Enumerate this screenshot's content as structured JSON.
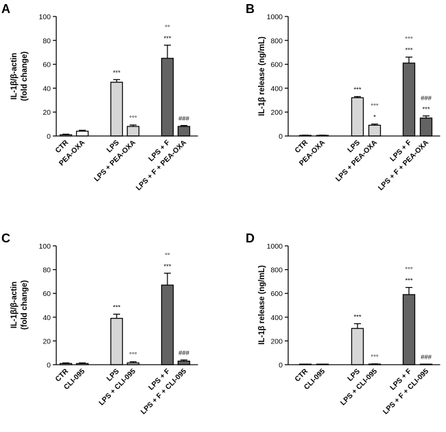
{
  "colors": {
    "white": "#ffffff",
    "light_gray": "#d6d6d6",
    "dark_gray": "#636363",
    "ink": "#000000"
  },
  "chart_data": [
    {
      "panel": "A",
      "type": "bar",
      "ylabel": [
        "IL-1β/β-actin",
        "(fold change)"
      ],
      "ylim": [
        0,
        100
      ],
      "yticks": [
        0,
        20,
        40,
        60,
        80,
        100
      ],
      "categories": [
        "CTR",
        "PEA-OXA",
        "LPS",
        "LPS + PEA-OXA",
        "LPS + F",
        "LPS + F + PEA-OXA"
      ],
      "values": [
        1,
        4,
        45,
        8,
        65,
        8
      ],
      "errors": [
        0.5,
        0.8,
        2.2,
        1.2,
        11,
        0.8
      ],
      "fill": [
        "white",
        "white",
        "light_gray",
        "light_gray",
        "dark_gray",
        "dark_gray"
      ],
      "annotations": [
        [
          "",
          "",
          "",
          ""
        ],
        [
          "",
          "",
          "",
          ""
        ],
        [
          "***",
          "",
          "",
          ""
        ],
        [
          "°°°",
          "",
          "",
          ""
        ],
        [
          "***",
          "°°",
          "",
          ""
        ],
        [
          "###",
          "",
          "",
          ""
        ]
      ]
    },
    {
      "panel": "B",
      "type": "bar",
      "ylabel": [
        "IL-1β release (ng/mL)"
      ],
      "ylim": [
        0,
        1000
      ],
      "yticks": [
        0,
        200,
        400,
        600,
        800,
        1000
      ],
      "categories": [
        "CTR",
        "PEA-OXA",
        "LPS",
        "LPS + PEA-OXA",
        "LPS + F",
        "LPS + F + PEA-OXA"
      ],
      "values": [
        5,
        5,
        320,
        90,
        610,
        150
      ],
      "errors": [
        2,
        2,
        10,
        10,
        50,
        18
      ],
      "fill": [
        "white",
        "white",
        "light_gray",
        "light_gray",
        "dark_gray",
        "dark_gray"
      ],
      "annotations": [
        [
          "",
          "",
          "",
          ""
        ],
        [
          "",
          "",
          "",
          ""
        ],
        [
          "***",
          "",
          "",
          ""
        ],
        [
          "*",
          "°°°",
          "",
          ""
        ],
        [
          "***",
          "°°°",
          "",
          ""
        ],
        [
          "***",
          "###",
          "",
          ""
        ]
      ]
    },
    {
      "panel": "C",
      "type": "bar",
      "ylabel": [
        "IL-1β/β-actin",
        "(fold change)"
      ],
      "ylim": [
        0,
        100
      ],
      "yticks": [
        0,
        20,
        40,
        60,
        80,
        100
      ],
      "categories": [
        "CTR",
        "CLI-095",
        "LPS",
        "LPS + CLI-095",
        "LPS + F",
        "LPS + F + CLI-095"
      ],
      "values": [
        1,
        1,
        39,
        1.5,
        67,
        3
      ],
      "errors": [
        0.5,
        0.5,
        3.5,
        1,
        10,
        1
      ],
      "fill": [
        "white",
        "white",
        "light_gray",
        "light_gray",
        "dark_gray",
        "dark_gray"
      ],
      "annotations": [
        [
          "",
          "",
          "",
          ""
        ],
        [
          "",
          "",
          "",
          ""
        ],
        [
          "***",
          "",
          "",
          ""
        ],
        [
          "°°°",
          "",
          "",
          ""
        ],
        [
          "***",
          "°°",
          "",
          ""
        ],
        [
          "###",
          "",
          "",
          ""
        ]
      ]
    },
    {
      "panel": "D",
      "type": "bar",
      "ylabel": [
        "IL-1β release (ng/mL)"
      ],
      "ylim": [
        0,
        1000
      ],
      "yticks": [
        0,
        200,
        400,
        600,
        800,
        1000
      ],
      "categories": [
        "CTR",
        "CLI-095",
        "LPS",
        "LPS + CLI-095",
        "LPS + F",
        "LPS + F + CLI-095"
      ],
      "values": [
        3,
        3,
        305,
        5,
        590,
        4
      ],
      "errors": [
        1,
        1,
        40,
        2,
        60,
        1
      ],
      "fill": [
        "white",
        "white",
        "light_gray",
        "light_gray",
        "dark_gray",
        "dark_gray"
      ],
      "annotations": [
        [
          "",
          "",
          "",
          ""
        ],
        [
          "",
          "",
          "",
          ""
        ],
        [
          "***",
          "",
          "",
          ""
        ],
        [
          "°°°",
          "",
          "",
          ""
        ],
        [
          "***",
          "°°°",
          "",
          ""
        ],
        [
          "###",
          "",
          "",
          ""
        ]
      ]
    }
  ]
}
